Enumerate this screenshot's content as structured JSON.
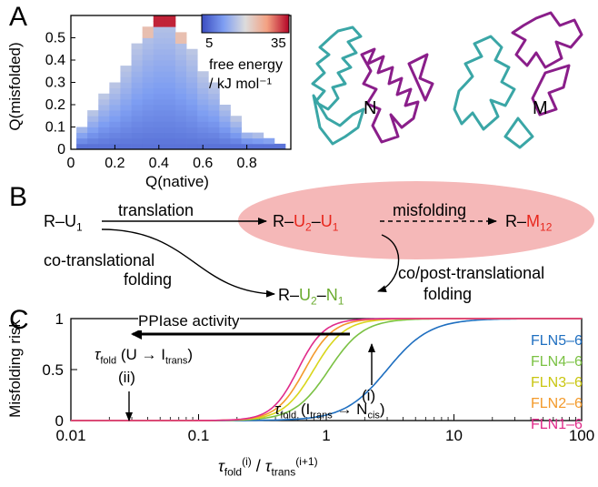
{
  "panels": {
    "A": {
      "letter": "A",
      "xlabel": "Q(native)",
      "ylabel": "Q(misfolded)",
      "xticks": [
        "0",
        "0.2",
        "0.4",
        "0.6",
        "0.8"
      ],
      "yticks": [
        "0",
        "0.1",
        "0.2",
        "0.3",
        "0.4",
        "0.5"
      ],
      "colorbar": {
        "min_label": "5",
        "max_label": "35",
        "title_line1": "free energy",
        "title_line2": "/ kJ mol⁻¹"
      },
      "structure_labels": [
        "N",
        "M"
      ]
    },
    "B": {
      "letter": "B",
      "start": "R–U",
      "start_sub": "1",
      "translation": "translation",
      "co_trans_line1": "co-translational",
      "co_trans_line2": "folding",
      "u2u1_prefix": "R–",
      "u2": "U",
      "u2_sub": "2",
      "u1": "U",
      "u1_sub": "1",
      "misfolding": "misfolding",
      "m_prefix": "R–",
      "m": "M",
      "m_sub": "12",
      "product_prefix": "R–",
      "product_u": "U",
      "product_u_sub": "2",
      "product_n": "N",
      "product_n_sub": "1",
      "copost_line1": "co/post-translational",
      "copost_line2": "folding"
    },
    "C": {
      "letter": "C",
      "ylabel": "Misfolding risk",
      "xticks": [
        "0.01",
        "0.1",
        "1",
        "10",
        "100"
      ],
      "yticks": [
        "0",
        "0.5",
        "1"
      ],
      "ppiase": "PPIase activity",
      "tau_u": "(U → I",
      "tau_u_sub": "trans",
      "tau_fold_sub": "fold",
      "marker_ii": "(ii)",
      "marker_i": "(i)",
      "tau_i": "(I",
      "tau_i_sub": "trans",
      "tau_i_arrow": "→ N",
      "tau_i_sub2": "cis",
      "xlabel_num_sup": "(i)",
      "xlabel_den_sup": "(i+1)",
      "xlabel_den_sub": "trans"
    }
  },
  "chart_data": [
    {
      "type": "heatmap",
      "title": "",
      "xlabel": "Q(native)",
      "ylabel": "Q(misfolded)",
      "xlim": [
        0,
        1.0
      ],
      "ylim": [
        0,
        0.6
      ],
      "colorbar_range": [
        5,
        35
      ],
      "colorbar_label": "free energy / kJ mol⁻¹",
      "columns": [
        {
          "q_native": 0.05,
          "top": 0.1
        },
        {
          "q_native": 0.1,
          "top": 0.16
        },
        {
          "q_native": 0.15,
          "top": 0.23
        },
        {
          "q_native": 0.2,
          "top": 0.29
        },
        {
          "q_native": 0.25,
          "top": 0.37
        },
        {
          "q_native": 0.3,
          "top": 0.47
        },
        {
          "q_native": 0.35,
          "top": 0.55
        },
        {
          "q_native": 0.4,
          "top": 0.6
        },
        {
          "q_native": 0.45,
          "top": 0.6
        },
        {
          "q_native": 0.5,
          "top": 0.52
        },
        {
          "q_native": 0.55,
          "top": 0.44
        },
        {
          "q_native": 0.6,
          "top": 0.34
        },
        {
          "q_native": 0.65,
          "top": 0.29
        },
        {
          "q_native": 0.7,
          "top": 0.2
        },
        {
          "q_native": 0.75,
          "top": 0.13
        },
        {
          "q_native": 0.8,
          "top": 0.07
        },
        {
          "q_native": 0.85,
          "top": 0.06
        },
        {
          "q_native": 0.9,
          "top": 0.03
        },
        {
          "q_native": 0.95,
          "top": 0.02
        }
      ]
    },
    {
      "type": "line",
      "title": "",
      "xlabel": "τfold(i) / τtrans(i+1)",
      "ylabel": "Misfolding risk",
      "xscale": "log",
      "xlim": [
        0.01,
        100
      ],
      "ylim": [
        0,
        1
      ],
      "legend_position": "right",
      "series": [
        {
          "name": "FLN5–6",
          "color": "#1f6fc0",
          "midpoint": 3.0,
          "steepness": 2.6
        },
        {
          "name": "FLN4–6",
          "color": "#7ac143",
          "midpoint": 1.05,
          "steepness": 3.2
        },
        {
          "name": "FLN3–6",
          "color": "#d9d61c",
          "midpoint": 0.8,
          "steepness": 3.6
        },
        {
          "name": "FLN2–6",
          "color": "#f39a2b",
          "midpoint": 0.68,
          "steepness": 3.9
        },
        {
          "name": "FLN1–6",
          "color": "#e02b8a",
          "midpoint": 0.6,
          "steepness": 4.2
        }
      ]
    }
  ]
}
